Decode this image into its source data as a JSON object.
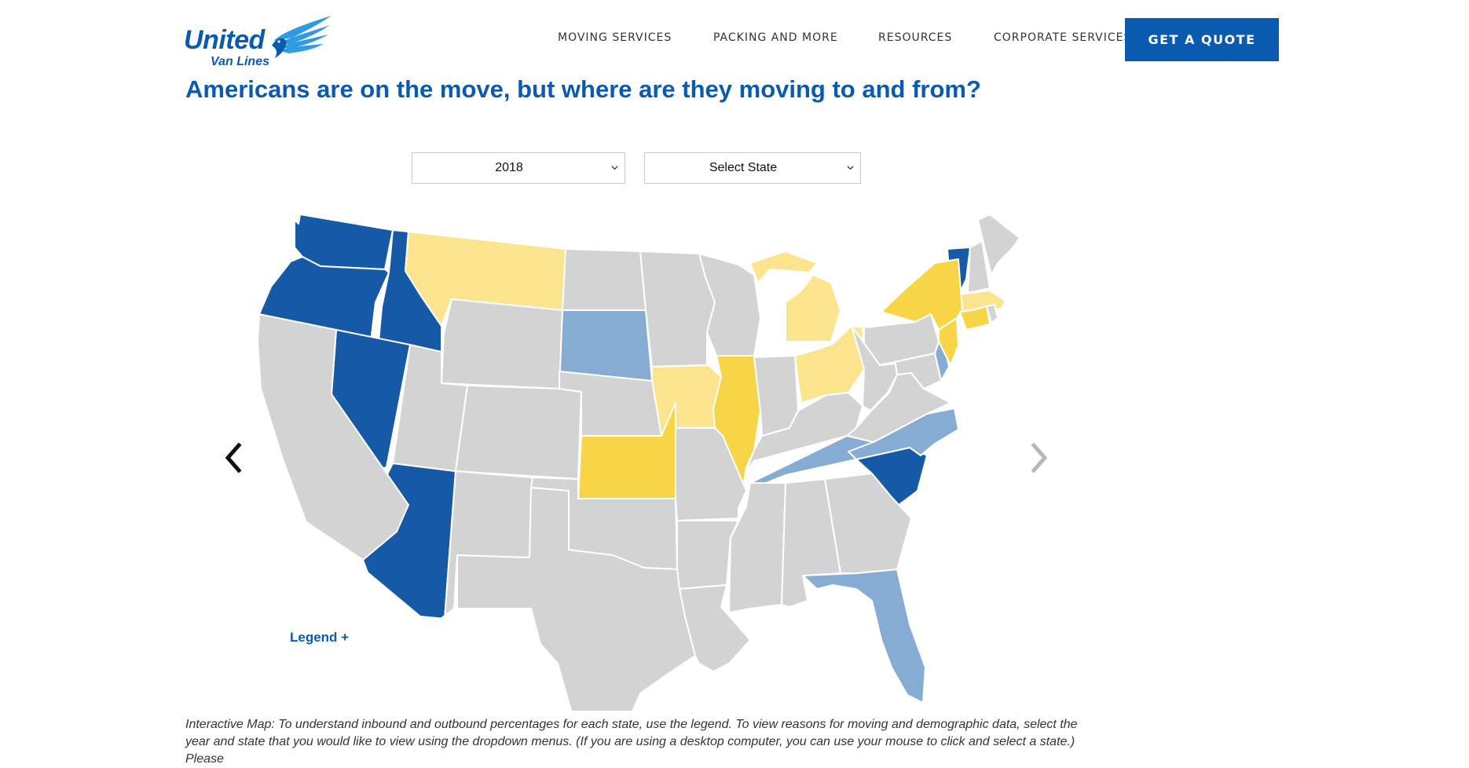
{
  "logo": {
    "word": "United",
    "sub": "Van Lines"
  },
  "nav": [
    {
      "label": "MOVING SERVICES"
    },
    {
      "label": "PACKING AND MORE"
    },
    {
      "label": "RESOURCES"
    },
    {
      "label": "CORPORATE SERVICES"
    }
  ],
  "cta": {
    "label": "GET A QUOTE"
  },
  "page": {
    "title": "Americans are on the move, but where are they moving to and from?"
  },
  "filters": {
    "year": "2018",
    "state": "Select State"
  },
  "legend": {
    "toggle_label": "Legend +"
  },
  "caption": {
    "text": "Interactive Map: To understand inbound and outbound percentages for each state, use the legend. To view reasons for moving and demographic data, select the year and state that you would like to view using the dropdown menus. (If you are using a desktop computer, you can use your mouse to click and select a state.) Please"
  },
  "colors": {
    "brand": "#0a5ab0",
    "high_inbound": "#1659a6",
    "moderate_inbound": "#86acd3",
    "balanced": "#d3d3d3",
    "moderate_outbound": "#fce48f",
    "high_outbound": "#f8d447",
    "arrow_active": "#111111",
    "arrow_inactive": "#b7b7b7"
  },
  "map": {
    "states": [
      {
        "abbr": "WA",
        "category": "high_inbound"
      },
      {
        "abbr": "OR",
        "category": "high_inbound"
      },
      {
        "abbr": "ID",
        "category": "high_inbound"
      },
      {
        "abbr": "NV",
        "category": "high_inbound"
      },
      {
        "abbr": "AZ",
        "category": "high_inbound"
      },
      {
        "abbr": "SC",
        "category": "high_inbound"
      },
      {
        "abbr": "VT",
        "category": "high_inbound"
      },
      {
        "abbr": "SD",
        "category": "moderate_inbound"
      },
      {
        "abbr": "TN",
        "category": "moderate_inbound"
      },
      {
        "abbr": "NC",
        "category": "moderate_inbound"
      },
      {
        "abbr": "FL",
        "category": "moderate_inbound"
      },
      {
        "abbr": "DE",
        "category": "moderate_inbound"
      },
      {
        "abbr": "MT",
        "category": "moderate_outbound"
      },
      {
        "abbr": "IA",
        "category": "moderate_outbound"
      },
      {
        "abbr": "MI",
        "category": "moderate_outbound"
      },
      {
        "abbr": "OH",
        "category": "moderate_outbound"
      },
      {
        "abbr": "MA",
        "category": "moderate_outbound"
      },
      {
        "abbr": "KS",
        "category": "high_outbound"
      },
      {
        "abbr": "IL",
        "category": "high_outbound"
      },
      {
        "abbr": "NY",
        "category": "high_outbound"
      },
      {
        "abbr": "NJ",
        "category": "high_outbound"
      },
      {
        "abbr": "CT",
        "category": "high_outbound"
      },
      {
        "abbr": "CA",
        "category": "balanced"
      },
      {
        "abbr": "UT",
        "category": "balanced"
      },
      {
        "abbr": "WY",
        "category": "balanced"
      },
      {
        "abbr": "CO",
        "category": "balanced"
      },
      {
        "abbr": "NM",
        "category": "balanced"
      },
      {
        "abbr": "ND",
        "category": "balanced"
      },
      {
        "abbr": "NE",
        "category": "balanced"
      },
      {
        "abbr": "OK",
        "category": "balanced"
      },
      {
        "abbr": "TX",
        "category": "balanced"
      },
      {
        "abbr": "MN",
        "category": "balanced"
      },
      {
        "abbr": "WI",
        "category": "balanced"
      },
      {
        "abbr": "MO",
        "category": "balanced"
      },
      {
        "abbr": "AR",
        "category": "balanced"
      },
      {
        "abbr": "LA",
        "category": "balanced"
      },
      {
        "abbr": "MS",
        "category": "balanced"
      },
      {
        "abbr": "AL",
        "category": "balanced"
      },
      {
        "abbr": "GA",
        "category": "balanced"
      },
      {
        "abbr": "IN",
        "category": "balanced"
      },
      {
        "abbr": "KY",
        "category": "balanced"
      },
      {
        "abbr": "WV",
        "category": "balanced"
      },
      {
        "abbr": "VA",
        "category": "balanced"
      },
      {
        "abbr": "PA",
        "category": "balanced"
      },
      {
        "abbr": "MD",
        "category": "balanced"
      },
      {
        "abbr": "NH",
        "category": "balanced"
      },
      {
        "abbr": "ME",
        "category": "balanced"
      },
      {
        "abbr": "RI",
        "category": "balanced"
      }
    ]
  }
}
